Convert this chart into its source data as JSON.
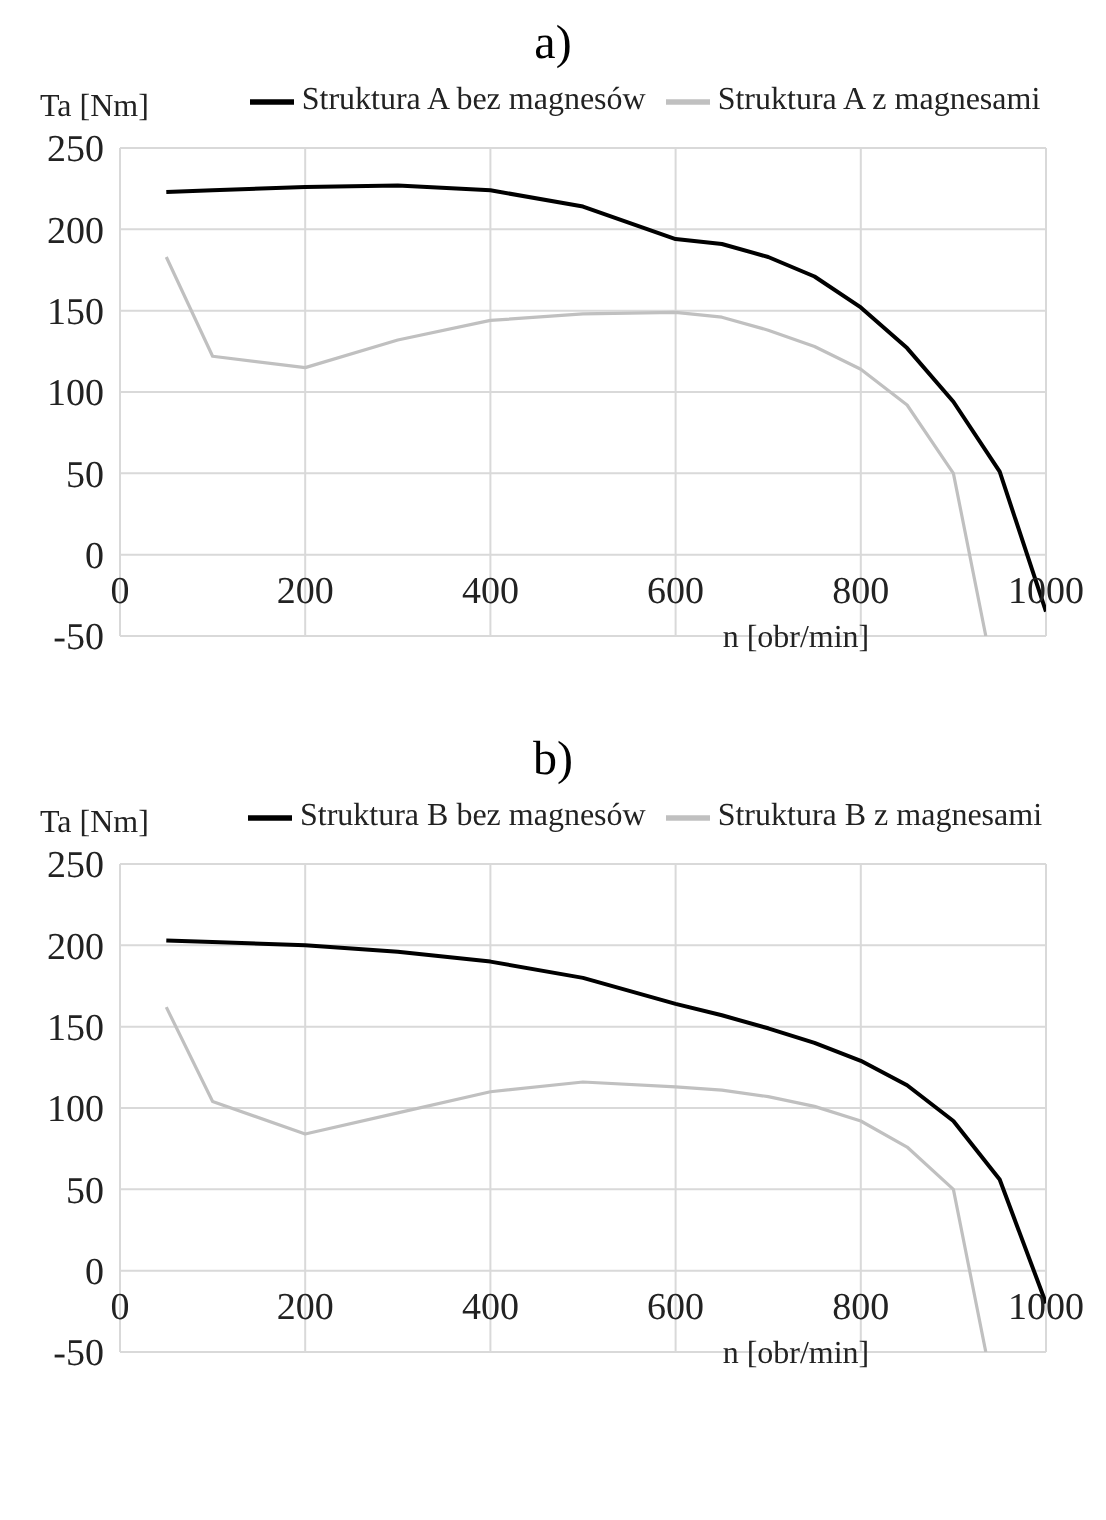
{
  "chart_data": [
    {
      "type": "line",
      "title": "a)",
      "xlabel": "n [obr/min]",
      "ylabel": "Ta [Nm]",
      "xlim": [
        0,
        1000
      ],
      "xticks": [
        0,
        200,
        400,
        600,
        800,
        1000
      ],
      "ylim": [
        -50,
        250
      ],
      "yticks": [
        -50,
        0,
        50,
        100,
        150,
        200,
        250
      ],
      "grid": true,
      "legend": "top",
      "marker": "none",
      "line_style": "solid",
      "series": [
        {
          "name": "Struktura A z magnesami",
          "color": "#c0c0c0",
          "x": [
            50,
            100,
            200,
            300,
            400,
            500,
            600,
            650,
            700,
            750,
            800,
            850,
            900,
            935
          ],
          "values": [
            183,
            122,
            115,
            132,
            144,
            148,
            149,
            146,
            138,
            128,
            114,
            92,
            50,
            -50
          ]
        },
        {
          "name": "Struktura A bez magnesów",
          "color": "#000000",
          "x": [
            50,
            100,
            200,
            300,
            400,
            500,
            600,
            650,
            700,
            750,
            800,
            850,
            900,
            950,
            1000
          ],
          "values": [
            223,
            224,
            226,
            227,
            224,
            214,
            194,
            191,
            183,
            171,
            152,
            127,
            94,
            51,
            -35
          ]
        }
      ]
    },
    {
      "type": "line",
      "title": "b)",
      "xlabel": "n [obr/min]",
      "ylabel": "Ta [Nm]",
      "xlim": [
        0,
        1000
      ],
      "xticks": [
        0,
        200,
        400,
        600,
        800,
        1000
      ],
      "ylim": [
        -50,
        250
      ],
      "yticks": [
        -50,
        0,
        50,
        100,
        150,
        200,
        250
      ],
      "grid": true,
      "legend": "top",
      "marker": "none",
      "line_style": "solid",
      "series": [
        {
          "name": "Struktura B z magnesami",
          "color": "#c0c0c0",
          "x": [
            50,
            100,
            200,
            300,
            400,
            500,
            600,
            650,
            700,
            750,
            800,
            850,
            900,
            935
          ],
          "values": [
            162,
            104,
            84,
            97,
            110,
            116,
            113,
            111,
            107,
            101,
            92,
            76,
            50,
            -50
          ]
        },
        {
          "name": "Struktura B bez magnesów",
          "color": "#000000",
          "x": [
            50,
            100,
            200,
            300,
            400,
            500,
            600,
            650,
            700,
            750,
            800,
            850,
            900,
            950,
            1000
          ],
          "values": [
            203,
            202,
            200,
            196,
            190,
            180,
            164,
            157,
            149,
            140,
            129,
            114,
            92,
            56,
            -20
          ]
        }
      ]
    }
  ]
}
